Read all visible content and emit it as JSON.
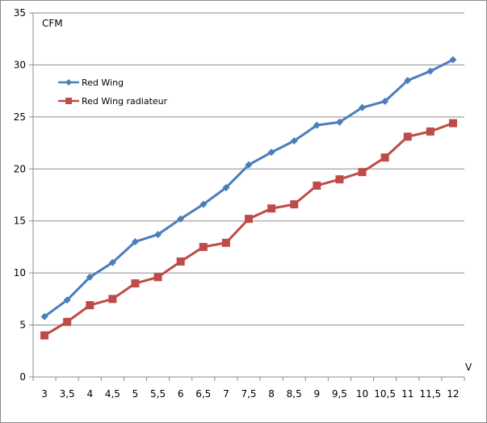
{
  "chart_data": {
    "type": "line",
    "ylabel": "CFM",
    "xlabel": "V",
    "ylim": [
      0,
      35
    ],
    "yticks": [
      "0",
      "5",
      "10",
      "15",
      "20",
      "25",
      "30",
      "35"
    ],
    "categories": [
      "3",
      "3,5",
      "4",
      "4,5",
      "5",
      "5,5",
      "6",
      "6,5",
      "7",
      "7,5",
      "8",
      "8,5",
      "9",
      "9,5",
      "10",
      "10,5",
      "11",
      "11,5",
      "12"
    ],
    "grid": "horizontal",
    "legend_position": "top-left",
    "series": [
      {
        "name": "Red Wing",
        "color": "#4a7ebb",
        "marker": "diamond",
        "values": [
          5.8,
          7.4,
          9.6,
          11.0,
          13.0,
          13.7,
          15.2,
          16.6,
          18.2,
          20.4,
          21.6,
          22.7,
          24.2,
          24.5,
          25.9,
          26.5,
          28.5,
          29.4,
          30.5
        ]
      },
      {
        "name": "Red Wing radiateur",
        "color": "#be4b48",
        "marker": "square",
        "values": [
          4.0,
          5.3,
          6.9,
          7.5,
          9.0,
          9.6,
          11.1,
          12.5,
          12.9,
          15.2,
          16.2,
          16.6,
          18.4,
          19.0,
          19.7,
          21.1,
          23.1,
          23.6,
          24.4
        ]
      }
    ]
  }
}
